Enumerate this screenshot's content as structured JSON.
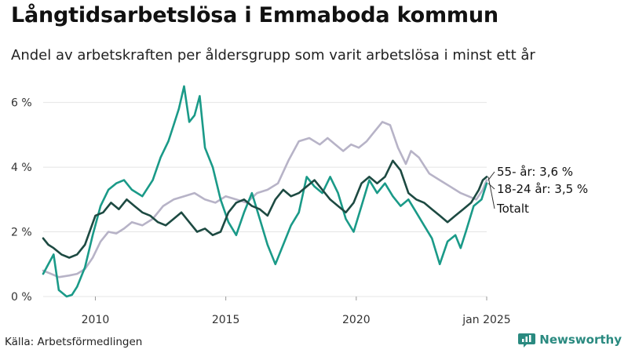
{
  "title": "Långtidsarbetslösa i Emmaboda kommun",
  "subtitle": "Andel av arbetskraften per åldersgrupp som varit arbetslösa i minst ett år",
  "source": "Källa: Arbetsförmedlingen",
  "brand": {
    "name": "Newsworthy",
    "icon": "bar-chart-icon"
  },
  "colors": {
    "young": "#1a9a88",
    "old": "#b7b3c7",
    "total": "#1d4a42",
    "grid": "#e4e4e4"
  },
  "chart_data": {
    "type": "line",
    "title": "Långtidsarbetslösa i Emmaboda kommun",
    "subtitle": "Andel av arbetskraften per åldersgrupp som varit arbetslösa i minst ett år",
    "xlabel": "",
    "ylabel": "",
    "xlim": [
      2008,
      2025.0
    ],
    "ylim": [
      0,
      6.5
    ],
    "yticks": [
      {
        "v": 0,
        "label": "0 %"
      },
      {
        "v": 2,
        "label": "2 %"
      },
      {
        "v": 4,
        "label": "4 %"
      },
      {
        "v": 6,
        "label": "6 %"
      }
    ],
    "xticks": [
      {
        "v": 2010,
        "label": "2010"
      },
      {
        "v": 2015,
        "label": "2015"
      },
      {
        "v": 2020,
        "label": "2020"
      },
      {
        "v": 2025,
        "label": "jan 2025"
      }
    ],
    "grid": true,
    "series": [
      {
        "name": "55- år",
        "key": "old",
        "end_label": "55- år: 3,6 %",
        "x": [
          2008.0,
          2008.3,
          2008.6,
          2009.0,
          2009.3,
          2009.6,
          2009.9,
          2010.2,
          2010.5,
          2010.8,
          2011.1,
          2011.4,
          2011.8,
          2012.2,
          2012.6,
          2013.0,
          2013.4,
          2013.8,
          2014.2,
          2014.6,
          2015.0,
          2015.4,
          2015.8,
          2016.2,
          2016.6,
          2017.0,
          2017.4,
          2017.8,
          2018.2,
          2018.6,
          2018.9,
          2019.2,
          2019.5,
          2019.8,
          2020.1,
          2020.4,
          2020.7,
          2021.0,
          2021.3,
          2021.6,
          2021.9,
          2022.1,
          2022.4,
          2022.8,
          2023.2,
          2023.6,
          2024.0,
          2024.3,
          2024.6,
          2024.85,
          2025.0
        ],
        "values": [
          0.8,
          0.7,
          0.6,
          0.65,
          0.7,
          0.85,
          1.2,
          1.7,
          2.0,
          1.95,
          2.1,
          2.3,
          2.2,
          2.4,
          2.8,
          3.0,
          3.1,
          3.2,
          3.0,
          2.9,
          3.1,
          3.0,
          2.9,
          3.2,
          3.3,
          3.5,
          4.2,
          4.8,
          4.9,
          4.7,
          4.9,
          4.7,
          4.5,
          4.7,
          4.6,
          4.8,
          5.1,
          5.4,
          5.3,
          4.6,
          4.1,
          4.5,
          4.3,
          3.8,
          3.6,
          3.4,
          3.2,
          3.1,
          3.0,
          3.3,
          3.6
        ]
      },
      {
        "name": "18-24 år",
        "key": "young",
        "end_label": "18-24 år: 3,5 %",
        "x": [
          2008.0,
          2008.2,
          2008.4,
          2008.6,
          2008.9,
          2009.1,
          2009.3,
          2009.6,
          2009.9,
          2010.2,
          2010.5,
          2010.8,
          2011.1,
          2011.4,
          2011.8,
          2012.2,
          2012.5,
          2012.8,
          2013.0,
          2013.2,
          2013.4,
          2013.6,
          2013.8,
          2014.0,
          2014.2,
          2014.5,
          2014.8,
          2015.1,
          2015.4,
          2015.7,
          2016.0,
          2016.3,
          2016.6,
          2016.9,
          2017.2,
          2017.5,
          2017.8,
          2018.1,
          2018.4,
          2018.7,
          2019.0,
          2019.3,
          2019.6,
          2019.9,
          2020.2,
          2020.5,
          2020.8,
          2021.1,
          2021.4,
          2021.7,
          2022.0,
          2022.3,
          2022.6,
          2022.9,
          2023.2,
          2023.5,
          2023.8,
          2024.0,
          2024.2,
          2024.5,
          2024.8,
          2025.0
        ],
        "values": [
          0.7,
          1.0,
          1.3,
          0.2,
          0.0,
          0.05,
          0.3,
          0.9,
          1.9,
          2.8,
          3.3,
          3.5,
          3.6,
          3.3,
          3.1,
          3.6,
          4.3,
          4.8,
          5.3,
          5.8,
          6.5,
          5.4,
          5.6,
          6.2,
          4.6,
          4.0,
          3.0,
          2.3,
          1.9,
          2.6,
          3.2,
          2.4,
          1.6,
          1.0,
          1.6,
          2.2,
          2.6,
          3.7,
          3.4,
          3.2,
          3.7,
          3.2,
          2.4,
          2.0,
          2.8,
          3.6,
          3.2,
          3.5,
          3.1,
          2.8,
          3.0,
          2.6,
          2.2,
          1.8,
          1.0,
          1.7,
          1.9,
          1.5,
          2.0,
          2.8,
          3.0,
          3.5
        ]
      },
      {
        "name": "Totalt",
        "key": "total",
        "end_label": "Totalt",
        "x": [
          2008.0,
          2008.2,
          2008.4,
          2008.7,
          2009.0,
          2009.3,
          2009.6,
          2010.0,
          2010.3,
          2010.6,
          2010.9,
          2011.2,
          2011.5,
          2011.8,
          2012.1,
          2012.4,
          2012.7,
          2013.0,
          2013.3,
          2013.6,
          2013.9,
          2014.2,
          2014.5,
          2014.8,
          2015.1,
          2015.4,
          2015.7,
          2016.0,
          2016.3,
          2016.6,
          2016.9,
          2017.2,
          2017.5,
          2017.8,
          2018.1,
          2018.4,
          2018.7,
          2019.0,
          2019.3,
          2019.6,
          2019.9,
          2020.2,
          2020.5,
          2020.8,
          2021.1,
          2021.4,
          2021.7,
          2022.0,
          2022.3,
          2022.6,
          2022.9,
          2023.2,
          2023.5,
          2023.8,
          2024.1,
          2024.4,
          2024.7,
          2024.85,
          2025.0
        ],
        "values": [
          1.8,
          1.6,
          1.5,
          1.3,
          1.2,
          1.3,
          1.6,
          2.5,
          2.6,
          2.9,
          2.7,
          3.0,
          2.8,
          2.6,
          2.5,
          2.3,
          2.2,
          2.4,
          2.6,
          2.3,
          2.0,
          2.1,
          1.9,
          2.0,
          2.6,
          2.9,
          3.0,
          2.8,
          2.7,
          2.5,
          3.0,
          3.3,
          3.1,
          3.2,
          3.4,
          3.6,
          3.3,
          3.0,
          2.8,
          2.6,
          2.9,
          3.5,
          3.7,
          3.5,
          3.7,
          4.2,
          3.9,
          3.2,
          3.0,
          2.9,
          2.7,
          2.5,
          2.3,
          2.5,
          2.7,
          2.9,
          3.3,
          3.6,
          3.7
        ]
      }
    ]
  }
}
